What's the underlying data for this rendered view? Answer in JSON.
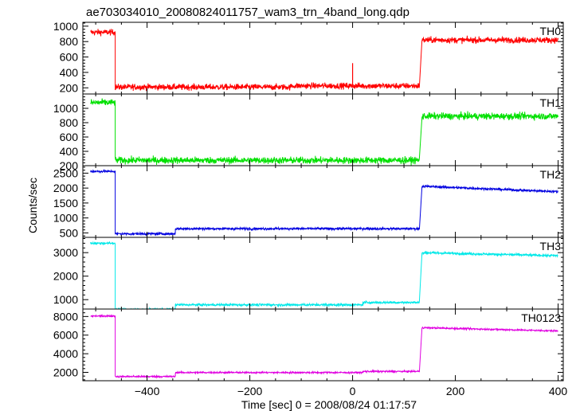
{
  "chart_data": {
    "type": "line",
    "title": "ae703034010_20080824011757_wam3_trn_4band_long.qdp",
    "xlabel": "Time [sec] 0 = 2008/08/24 01:17:57",
    "ylabel": "Counts/sec",
    "xlim": [
      -525,
      410
    ],
    "xticks": [
      -400,
      -200,
      0,
      200,
      400
    ],
    "panels": [
      {
        "name": "TH0",
        "color": "#ff0000",
        "ylim": [
          120,
          1050
        ],
        "yticks": [
          200,
          400,
          600,
          800,
          1000
        ],
        "noise": 70,
        "spikes": [
          {
            "x": 0,
            "y": 520
          }
        ],
        "segments": [
          {
            "x": [
              -510,
              -462
            ],
            "y": 920
          },
          {
            "x": [
              -462,
              -120
            ],
            "y": 210
          },
          {
            "x": [
              -120,
              130
            ],
            "y": 225
          },
          {
            "x": [
              135,
              400
            ],
            "y": 820
          }
        ]
      },
      {
        "name": "TH1",
        "color": "#00e000",
        "ylim": [
          200,
          1200
        ],
        "yticks": [
          200,
          400,
          600,
          800,
          1000
        ],
        "noise": 85,
        "spikes": [],
        "segments": [
          {
            "x": [
              -510,
              -462
            ],
            "y": 1080
          },
          {
            "x": [
              -462,
              130
            ],
            "y": 275
          },
          {
            "x": [
              135,
              400
            ],
            "y": 890
          }
        ]
      },
      {
        "name": "TH2",
        "color": "#0000e0",
        "ylim": [
          350,
          2750
        ],
        "yticks": [
          500,
          1000,
          1500,
          2000,
          2500
        ],
        "noise": 70,
        "spikes": [],
        "segments": [
          {
            "x": [
              -510,
              -462
            ],
            "y": 2560
          },
          {
            "x": [
              -462,
              -345
            ],
            "y": 470
          },
          {
            "x": [
              -345,
              130
            ],
            "y": 640
          },
          {
            "x": [
              135,
              400
            ],
            "y": [
              2060,
              1880
            ]
          }
        ]
      },
      {
        "name": "TH3",
        "color": "#00e8e8",
        "ylim": [
          600,
          3650
        ],
        "yticks": [
          1000,
          2000,
          3000
        ],
        "noise": 90,
        "spikes": [],
        "segments": [
          {
            "x": [
              -510,
              -462
            ],
            "y": 3400
          },
          {
            "x": [
              -462,
              -345
            ],
            "y": 580
          },
          {
            "x": [
              -345,
              20
            ],
            "y": 780
          },
          {
            "x": [
              20,
              130
            ],
            "y": 880
          },
          {
            "x": [
              135,
              400
            ],
            "y": [
              3000,
              2870
            ]
          }
        ]
      },
      {
        "name": "TH0123",
        "color": "#e000e0",
        "ylim": [
          1100,
          8800
        ],
        "yticks": [
          2000,
          4000,
          6000,
          8000
        ],
        "noise": 160,
        "spikes": [],
        "segments": [
          {
            "x": [
              -510,
              -462
            ],
            "y": 8050
          },
          {
            "x": [
              -462,
              -345
            ],
            "y": 1550
          },
          {
            "x": [
              -345,
              20
            ],
            "y": 1980
          },
          {
            "x": [
              20,
              130
            ],
            "y": 2100
          },
          {
            "x": [
              135,
              400
            ],
            "y": [
              6800,
              6450
            ]
          }
        ]
      }
    ]
  }
}
